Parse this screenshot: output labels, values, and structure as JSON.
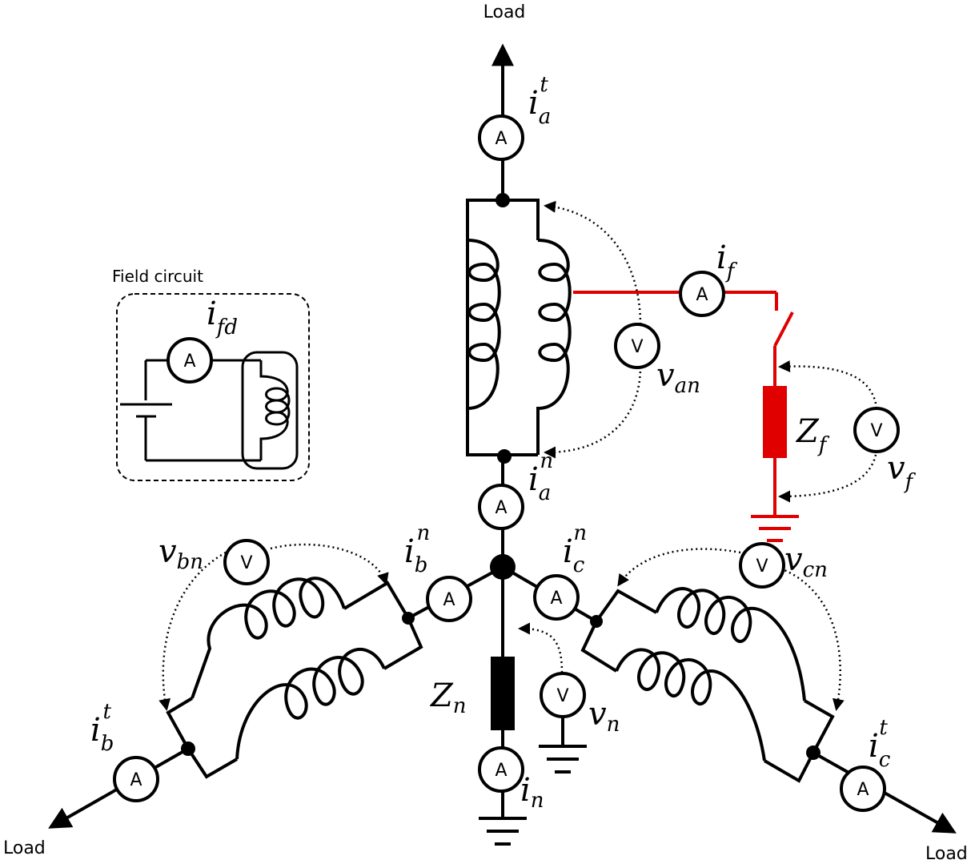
{
  "load_labels": {
    "a": "Load",
    "b": "Load",
    "c": "Load"
  },
  "field_circuit": {
    "title": "Field circuit"
  },
  "meter_glyphs": {
    "ammeter": "A",
    "voltmeter": "V"
  },
  "colors": {
    "wire": "#000000",
    "fault": "#e00000"
  },
  "symbols": {
    "ia_t": {
      "base": "i",
      "sub": "a",
      "sup": "t"
    },
    "ia_n": {
      "base": "i",
      "sub": "a",
      "sup": "n"
    },
    "ib_n": {
      "base": "i",
      "sub": "b",
      "sup": "n"
    },
    "ic_n": {
      "base": "i",
      "sub": "c",
      "sup": "n"
    },
    "ib_t": {
      "base": "i",
      "sub": "b",
      "sup": "t"
    },
    "ic_t": {
      "base": "i",
      "sub": "c",
      "sup": "t"
    },
    "if": {
      "base": "i",
      "sub": "f"
    },
    "ifd": {
      "base": "i",
      "sub": "fd"
    },
    "in": {
      "base": "i",
      "sub": "n"
    },
    "van": {
      "base": "v",
      "sub": "an"
    },
    "vbn": {
      "base": "v",
      "sub": "bn"
    },
    "vcn": {
      "base": "v",
      "sub": "cn"
    },
    "vf": {
      "base": "v",
      "sub": "f"
    },
    "vn": {
      "base": "v",
      "sub": "n"
    },
    "zf": {
      "base": "Z",
      "sub": "f"
    },
    "zn": {
      "base": "Z",
      "sub": "n"
    }
  }
}
